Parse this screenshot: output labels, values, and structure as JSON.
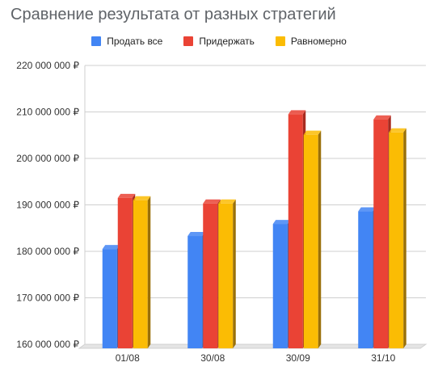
{
  "title": "Сравнение результата от разных стратегий",
  "chart_data": {
    "type": "bar",
    "title": "Сравнение результата от разных стратегий",
    "categories": [
      "01/08",
      "30/08",
      "30/09",
      "31/10"
    ],
    "series": [
      {
        "name": "Продать все",
        "color": "#4285f4",
        "side_color": "#2a5fb8",
        "values": [
          180500000,
          183300000,
          185900000,
          188600000
        ]
      },
      {
        "name": "Придержать",
        "color": "#ea4335",
        "side_color": "#a82b20",
        "values": [
          191500000,
          190300000,
          209500000,
          208400000
        ]
      },
      {
        "name": "Равномерно",
        "color": "#fbbc04",
        "side_color": "#9a7009",
        "values": [
          191000000,
          190300000,
          205100000,
          205600000
        ]
      }
    ],
    "ylim": [
      160000000,
      220000000
    ],
    "yticks": [
      160000000,
      170000000,
      180000000,
      190000000,
      200000000,
      210000000,
      220000000
    ],
    "ytick_labels": [
      "160 000 000 ₽",
      "170 000 000 ₽",
      "180 000 000 ₽",
      "190 000 000 ₽",
      "200 000 000 ₽",
      "210 000 000 ₽",
      "220 000 000 ₽"
    ],
    "xlabel": "",
    "ylabel": "",
    "grid": true,
    "legend_position": "top",
    "style": "3d"
  }
}
